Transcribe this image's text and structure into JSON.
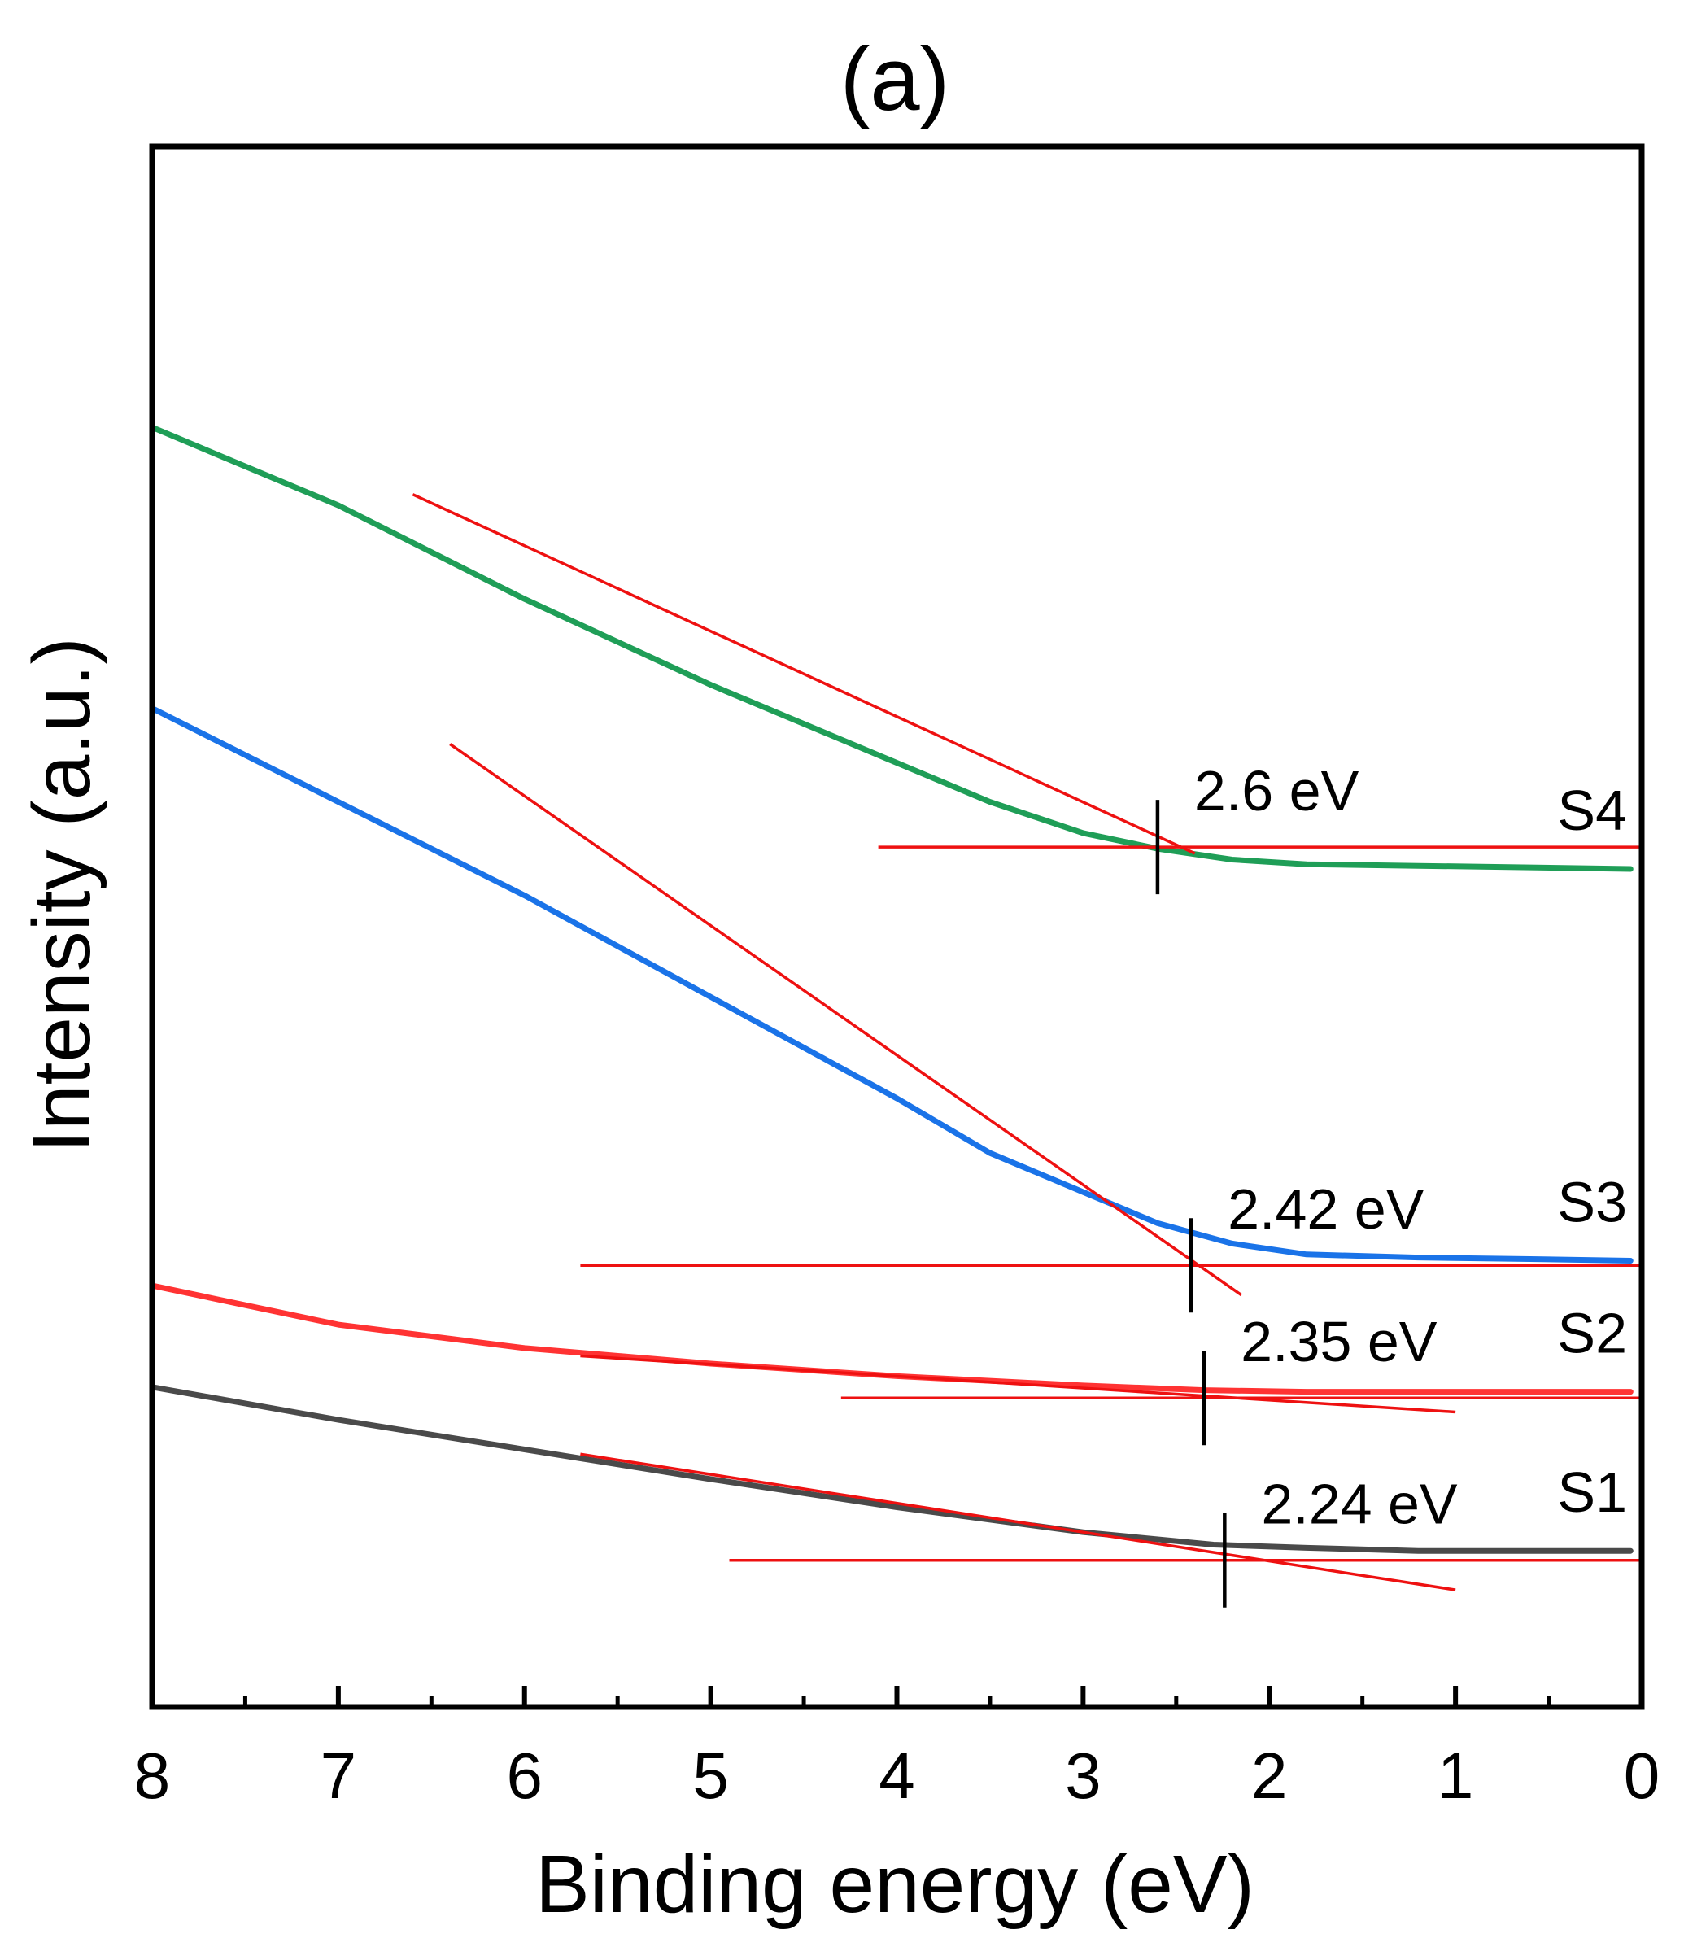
{
  "chart_data": {
    "type": "line",
    "title": "(a)",
    "xlabel": "Binding energy (eV)",
    "ylabel": "Intensity (a.u.)",
    "xlim": [
      8,
      0
    ],
    "ylim": [
      0,
      1
    ],
    "x_ticks": [
      8,
      7,
      6,
      5,
      4,
      3,
      2,
      1,
      0
    ],
    "y_ticks_shown": false,
    "grid": false,
    "series": [
      {
        "name": "S4",
        "color": "#1f9e57",
        "x": [
          8.0,
          7.0,
          6.0,
          5.0,
          4.0,
          3.5,
          3.0,
          2.6,
          2.2,
          1.8,
          1.2,
          0.6,
          0.06
        ],
        "y": [
          0.82,
          0.77,
          0.71,
          0.655,
          0.605,
          0.58,
          0.56,
          0.55,
          0.543,
          0.54,
          0.539,
          0.538,
          0.537
        ]
      },
      {
        "name": "S3",
        "color": "#1a73e8",
        "x": [
          8.0,
          7.0,
          6.0,
          5.0,
          4.0,
          3.5,
          3.0,
          2.6,
          2.2,
          1.8,
          1.2,
          0.6,
          0.06
        ],
        "y": [
          0.64,
          0.58,
          0.52,
          0.455,
          0.39,
          0.355,
          0.33,
          0.31,
          0.297,
          0.29,
          0.288,
          0.287,
          0.286
        ]
      },
      {
        "name": "S2",
        "color": "#ff3333",
        "x": [
          8.0,
          7.0,
          6.0,
          5.0,
          4.0,
          3.0,
          2.35,
          1.8,
          1.2,
          0.6,
          0.06
        ],
        "y": [
          0.27,
          0.245,
          0.23,
          0.22,
          0.212,
          0.206,
          0.203,
          0.202,
          0.202,
          0.202,
          0.202
        ]
      },
      {
        "name": "S1",
        "color": "#4a4a4a",
        "x": [
          8.0,
          7.0,
          6.0,
          5.0,
          4.0,
          3.0,
          2.3,
          1.8,
          1.2,
          0.6,
          0.06
        ],
        "y": [
          0.205,
          0.184,
          0.165,
          0.146,
          0.128,
          0.112,
          0.104,
          0.102,
          0.1,
          0.1,
          0.1
        ]
      }
    ],
    "fit_lines": [
      {
        "series": "S4",
        "slope_x": [
          6.6,
          2.4
        ],
        "slope_y": [
          0.777,
          0.547
        ],
        "base_x": [
          4.1,
          0
        ],
        "base_y": [
          0.551,
          0.551
        ]
      },
      {
        "series": "S3",
        "slope_x": [
          6.4,
          2.15
        ],
        "slope_y": [
          0.617,
          0.264
        ],
        "base_x": [
          5.7,
          0
        ],
        "base_y": [
          0.283,
          0.283
        ]
      },
      {
        "series": "S2",
        "slope_x": [
          5.7,
          1.0
        ],
        "slope_y": [
          0.225,
          0.189
        ],
        "base_x": [
          4.3,
          0
        ],
        "base_y": [
          0.198,
          0.198
        ]
      },
      {
        "series": "S1",
        "slope_x": [
          5.7,
          1.0
        ],
        "slope_y": [
          0.162,
          0.075
        ],
        "base_x": [
          4.9,
          0
        ],
        "base_y": [
          0.094,
          0.094
        ]
      }
    ],
    "fit_color": "#ee1111",
    "annotations": [
      {
        "series": "S4",
        "text": "2.6 eV",
        "x": 2.6,
        "y": 0.551
      },
      {
        "series": "S3",
        "text": "2.42 eV",
        "x": 2.42,
        "y": 0.283
      },
      {
        "series": "S2",
        "text": "2.35 eV",
        "x": 2.35,
        "y": 0.198
      },
      {
        "series": "S1",
        "text": "2.24 eV",
        "x": 2.24,
        "y": 0.094
      }
    ],
    "series_labels": [
      "S4",
      "S3",
      "S2",
      "S1"
    ]
  }
}
